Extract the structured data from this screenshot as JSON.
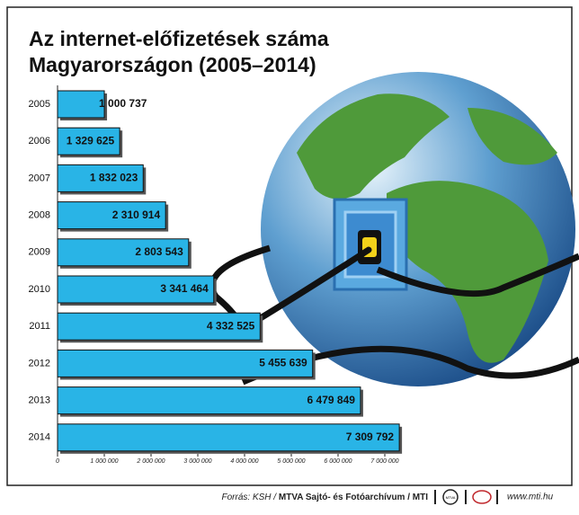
{
  "chart_data": {
    "type": "hbar",
    "title": [
      "Az internet-előfizetések száma",
      "Magyarországon (2005–2014)"
    ],
    "categories": [
      "2005",
      "2006",
      "2007",
      "2008",
      "2009",
      "2010",
      "2011",
      "2012",
      "2013",
      "2014"
    ],
    "values": [
      1000737,
      1329625,
      1832023,
      2310914,
      2803543,
      3341464,
      4332525,
      5455639,
      6479849,
      7309792
    ],
    "value_labels": [
      "1 000 737",
      "1 329 625",
      "1 832 023",
      "2 310 914",
      "2 803 543",
      "3 341 464",
      "4 332 525",
      "5 455 639",
      "6 479 849",
      "7 309 792"
    ],
    "color": "#29b4e6",
    "xlim": [
      0,
      7500000
    ],
    "xticks": [
      0,
      {
        "value": 1000000,
        "label": "1 000 000"
      },
      {
        "value": 2000000,
        "label": "2 000 000"
      },
      {
        "value": 3000000,
        "label": "3 000 000"
      },
      {
        "value": 4000000,
        "label": "4 000 000"
      },
      {
        "value": 5000000,
        "label": "5 000 000"
      },
      {
        "value": 6000000,
        "label": "6 000 000"
      },
      {
        "value": 7000000,
        "label": "7 000 000"
      }
    ]
  },
  "footer": {
    "source": "Forrás: KSH /",
    "agency": "MTVA Sajtó- és Fotóarchívum / MTI",
    "logo": "MTVA",
    "website": "www.mti.hu"
  }
}
